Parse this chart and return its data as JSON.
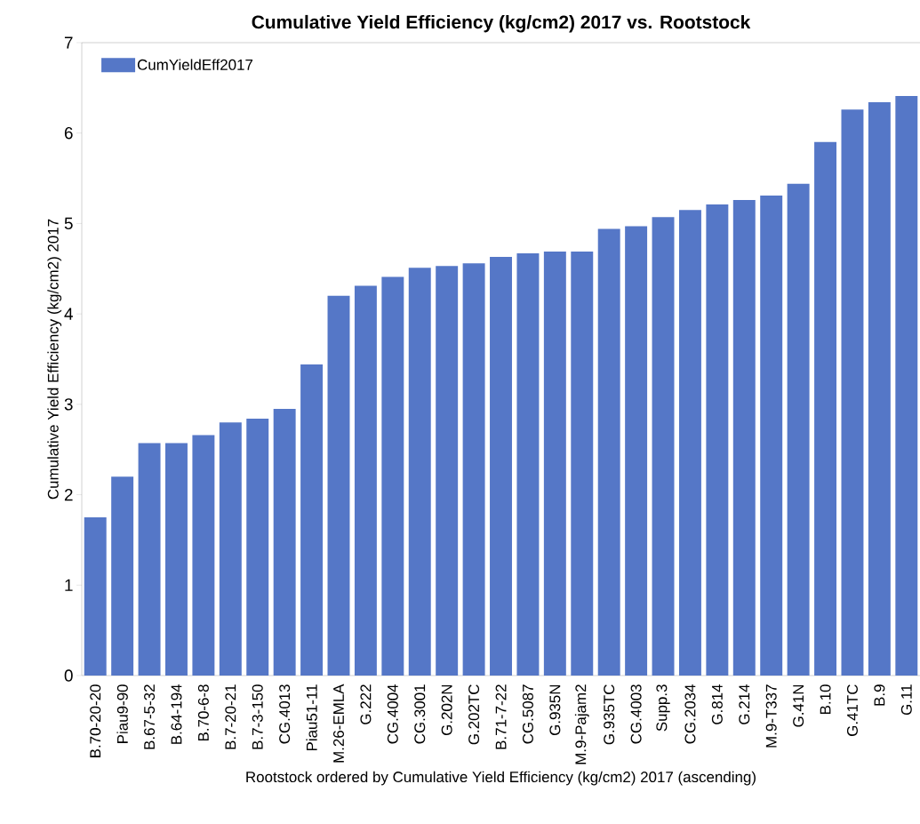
{
  "chart_data": {
    "type": "bar",
    "title": "Cumulative Yield Efficiency (kg/cm2) 2017 vs. Rootstock",
    "xlabel": "Rootstock ordered by Cumulative Yield Efficiency (kg/cm2) 2017 (ascending)",
    "ylabel": "Cumulative Yield Efficiency (kg/cm2) 2017",
    "categories": [
      "B.70-20-20",
      "Piau9-90",
      "B.67-5-32",
      "B.64-194",
      "B.70-6-8",
      "B.7-20-21",
      "B.7-3-150",
      "CG.4013",
      "Piau51-11",
      "M.26-EMLA",
      "G.222",
      "CG.4004",
      "CG.3001",
      "G.202N",
      "G.202TC",
      "B.71-7-22",
      "CG.5087",
      "G.935N",
      "M.9-Pajam2",
      "G.935TC",
      "CG.4003",
      "Supp.3",
      "CG.2034",
      "G.814",
      "G.214",
      "M.9-T337",
      "G.41N",
      "B.10",
      "G.41TC",
      "B.9",
      "G.11"
    ],
    "series": [
      {
        "name": "CumYieldEff2017",
        "color": "#5577c7",
        "values": [
          1.75,
          2.2,
          2.57,
          2.57,
          2.66,
          2.8,
          2.84,
          2.95,
          3.44,
          4.2,
          4.31,
          4.41,
          4.51,
          4.53,
          4.56,
          4.63,
          4.67,
          4.69,
          4.69,
          4.94,
          4.97,
          5.07,
          5.15,
          5.21,
          5.26,
          5.31,
          5.44,
          5.9,
          6.26,
          6.34,
          6.41
        ]
      }
    ],
    "ylim": [
      0,
      7
    ],
    "yticks": [
      0,
      1,
      2,
      3,
      4,
      5,
      6,
      7
    ],
    "legend": "top left",
    "grid": false
  }
}
